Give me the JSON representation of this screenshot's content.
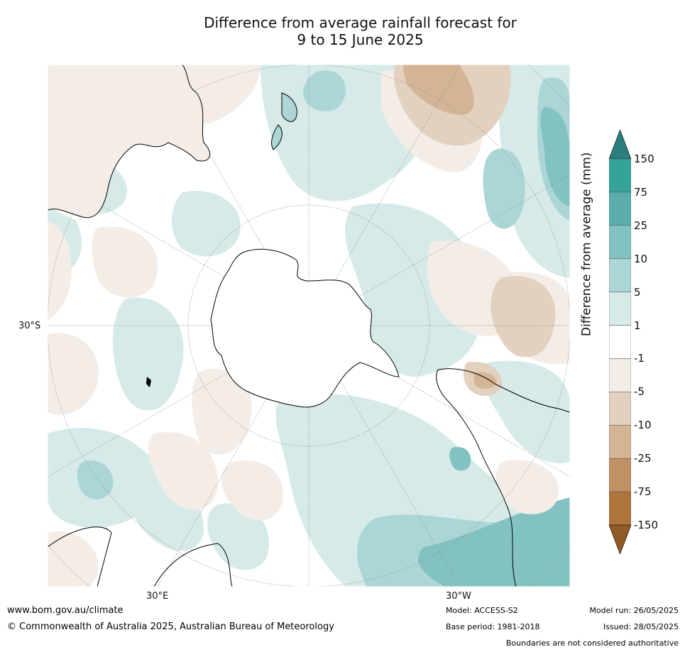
{
  "title": {
    "line1": "Difference from average rainfall forecast for",
    "line2": "9 to 15 June 2025"
  },
  "map": {
    "projection": "south-polar-stereographic",
    "graticule_labels": {
      "lat_30s": "30°S",
      "lon_30e": "30°E",
      "lon_30w": "30°W"
    }
  },
  "colorbar": {
    "title": "Difference from average (mm)",
    "ticks": [
      "150",
      "75",
      "25",
      "10",
      "5",
      "1",
      "-1",
      "-5",
      "-10",
      "-25",
      "-75",
      "-150"
    ],
    "colors": [
      "#2a7f7e",
      "#35a29c",
      "#5aadac",
      "#82c3c1",
      "#acd6d5",
      "#d6eae9",
      "#ffffff",
      "#f4ede7",
      "#e3d1bf",
      "#d3b596",
      "#c19166",
      "#ae743c",
      "#8f5a25"
    ]
  },
  "footer": {
    "url": "www.bom.gov.au/climate",
    "copyright": "© Commonwealth of Australia 2025, Australian Bureau of Meteorology",
    "model": "Model: ACCESS-S2",
    "base_period": "Base period: 1981-2018",
    "model_run": "Model run: 26/05/2025",
    "issued": "Issued: 28/05/2025",
    "note": "Boundaries are not considered authoritative"
  }
}
